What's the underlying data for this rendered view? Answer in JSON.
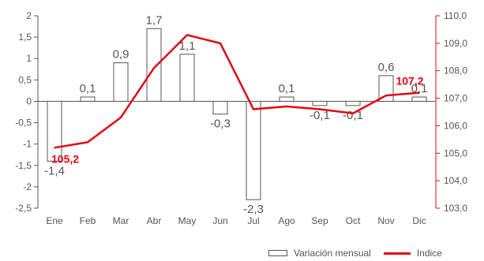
{
  "chart_data": {
    "type": "bar+line",
    "categories": [
      "Ene",
      "Feb",
      "Mar",
      "Abr",
      "May",
      "Jun",
      "Jul",
      "Ago",
      "Sep",
      "Oct",
      "Nov",
      "Dic"
    ],
    "bar_series": {
      "name": "Variación mensual",
      "values": [
        -1.4,
        0.1,
        0.9,
        1.7,
        1.1,
        -0.3,
        -2.3,
        0.1,
        -0.1,
        -0.1,
        0.6,
        0.1
      ],
      "labels": [
        "-1,4",
        "0,1",
        "0,9",
        "1,7",
        "1,1",
        "-0,3",
        "-2,3",
        "0,1",
        "-0,1",
        "-0,1",
        "0,6",
        "0,1"
      ]
    },
    "line_series": {
      "name": "Indice",
      "values": [
        105.2,
        105.4,
        106.3,
        108.1,
        109.3,
        109.0,
        106.6,
        106.7,
        106.6,
        106.45,
        107.1,
        107.2
      ],
      "start_label": "105,2",
      "end_label": "107,2",
      "color": "#e30613"
    },
    "y_left": {
      "min": -2.5,
      "max": 2,
      "step": 0.5,
      "ticks": [
        "-2,5",
        "-2",
        "-1,5",
        "-1",
        "-0,5",
        "0",
        "0,5",
        "1",
        "1,5",
        "2"
      ]
    },
    "y_right": {
      "min": 103,
      "max": 110,
      "step": 1,
      "ticks": [
        "103,0",
        "104,0",
        "105,0",
        "106,0",
        "107,0",
        "108,0",
        "109,0",
        "110,0"
      ],
      "color": "#e30613"
    },
    "axis_color": "#555555",
    "bar_stroke": "#555555",
    "bar_fill": "#ffffff",
    "legend_position": "bottom-right"
  },
  "legend": {
    "bar_label": "Variación mensual",
    "line_label": "Indice"
  }
}
